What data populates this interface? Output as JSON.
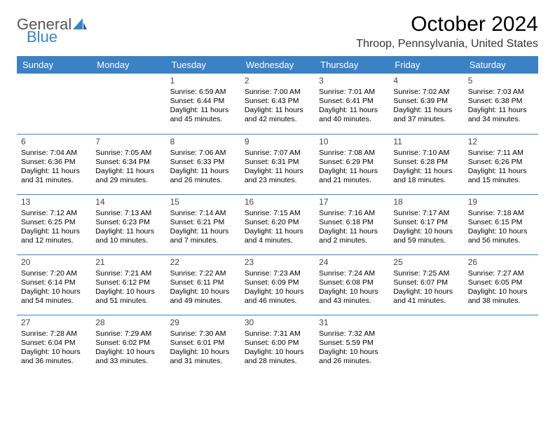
{
  "logo": {
    "general": "General",
    "blue": "Blue"
  },
  "title": "October 2024",
  "subtitle": "Throop, Pennsylvania, United States",
  "dayNames": [
    "Sunday",
    "Monday",
    "Tuesday",
    "Wednesday",
    "Thursday",
    "Friday",
    "Saturday"
  ],
  "colors": {
    "accent": "#3b82c4",
    "headerText": "#ffffff",
    "bodyText": "#000000",
    "logoGray": "#555555"
  },
  "typography": {
    "title_fontsize": 30,
    "subtitle_fontsize": 16,
    "dayheader_fontsize": 13,
    "daynum_fontsize": 12,
    "cell_fontsize": 10.5
  },
  "layout": {
    "cols": 7,
    "rows": 5,
    "firstDayOffset": 2
  },
  "days": [
    {
      "n": "1",
      "sunrise": "6:59 AM",
      "sunset": "6:44 PM",
      "daylight": "11 hours and 45 minutes."
    },
    {
      "n": "2",
      "sunrise": "7:00 AM",
      "sunset": "6:43 PM",
      "daylight": "11 hours and 42 minutes."
    },
    {
      "n": "3",
      "sunrise": "7:01 AM",
      "sunset": "6:41 PM",
      "daylight": "11 hours and 40 minutes."
    },
    {
      "n": "4",
      "sunrise": "7:02 AM",
      "sunset": "6:39 PM",
      "daylight": "11 hours and 37 minutes."
    },
    {
      "n": "5",
      "sunrise": "7:03 AM",
      "sunset": "6:38 PM",
      "daylight": "11 hours and 34 minutes."
    },
    {
      "n": "6",
      "sunrise": "7:04 AM",
      "sunset": "6:36 PM",
      "daylight": "11 hours and 31 minutes."
    },
    {
      "n": "7",
      "sunrise": "7:05 AM",
      "sunset": "6:34 PM",
      "daylight": "11 hours and 29 minutes."
    },
    {
      "n": "8",
      "sunrise": "7:06 AM",
      "sunset": "6:33 PM",
      "daylight": "11 hours and 26 minutes."
    },
    {
      "n": "9",
      "sunrise": "7:07 AM",
      "sunset": "6:31 PM",
      "daylight": "11 hours and 23 minutes."
    },
    {
      "n": "10",
      "sunrise": "7:08 AM",
      "sunset": "6:29 PM",
      "daylight": "11 hours and 21 minutes."
    },
    {
      "n": "11",
      "sunrise": "7:10 AM",
      "sunset": "6:28 PM",
      "daylight": "11 hours and 18 minutes."
    },
    {
      "n": "12",
      "sunrise": "7:11 AM",
      "sunset": "6:26 PM",
      "daylight": "11 hours and 15 minutes."
    },
    {
      "n": "13",
      "sunrise": "7:12 AM",
      "sunset": "6:25 PM",
      "daylight": "11 hours and 12 minutes."
    },
    {
      "n": "14",
      "sunrise": "7:13 AM",
      "sunset": "6:23 PM",
      "daylight": "11 hours and 10 minutes."
    },
    {
      "n": "15",
      "sunrise": "7:14 AM",
      "sunset": "6:21 PM",
      "daylight": "11 hours and 7 minutes."
    },
    {
      "n": "16",
      "sunrise": "7:15 AM",
      "sunset": "6:20 PM",
      "daylight": "11 hours and 4 minutes."
    },
    {
      "n": "17",
      "sunrise": "7:16 AM",
      "sunset": "6:18 PM",
      "daylight": "11 hours and 2 minutes."
    },
    {
      "n": "18",
      "sunrise": "7:17 AM",
      "sunset": "6:17 PM",
      "daylight": "10 hours and 59 minutes."
    },
    {
      "n": "19",
      "sunrise": "7:18 AM",
      "sunset": "6:15 PM",
      "daylight": "10 hours and 56 minutes."
    },
    {
      "n": "20",
      "sunrise": "7:20 AM",
      "sunset": "6:14 PM",
      "daylight": "10 hours and 54 minutes."
    },
    {
      "n": "21",
      "sunrise": "7:21 AM",
      "sunset": "6:12 PM",
      "daylight": "10 hours and 51 minutes."
    },
    {
      "n": "22",
      "sunrise": "7:22 AM",
      "sunset": "6:11 PM",
      "daylight": "10 hours and 49 minutes."
    },
    {
      "n": "23",
      "sunrise": "7:23 AM",
      "sunset": "6:09 PM",
      "daylight": "10 hours and 46 minutes."
    },
    {
      "n": "24",
      "sunrise": "7:24 AM",
      "sunset": "6:08 PM",
      "daylight": "10 hours and 43 minutes."
    },
    {
      "n": "25",
      "sunrise": "7:25 AM",
      "sunset": "6:07 PM",
      "daylight": "10 hours and 41 minutes."
    },
    {
      "n": "26",
      "sunrise": "7:27 AM",
      "sunset": "6:05 PM",
      "daylight": "10 hours and 38 minutes."
    },
    {
      "n": "27",
      "sunrise": "7:28 AM",
      "sunset": "6:04 PM",
      "daylight": "10 hours and 36 minutes."
    },
    {
      "n": "28",
      "sunrise": "7:29 AM",
      "sunset": "6:02 PM",
      "daylight": "10 hours and 33 minutes."
    },
    {
      "n": "29",
      "sunrise": "7:30 AM",
      "sunset": "6:01 PM",
      "daylight": "10 hours and 31 minutes."
    },
    {
      "n": "30",
      "sunrise": "7:31 AM",
      "sunset": "6:00 PM",
      "daylight": "10 hours and 28 minutes."
    },
    {
      "n": "31",
      "sunrise": "7:32 AM",
      "sunset": "5:59 PM",
      "daylight": "10 hours and 26 minutes."
    }
  ],
  "labels": {
    "sunrise": "Sunrise: ",
    "sunset": "Sunset: ",
    "daylight": "Daylight: "
  }
}
